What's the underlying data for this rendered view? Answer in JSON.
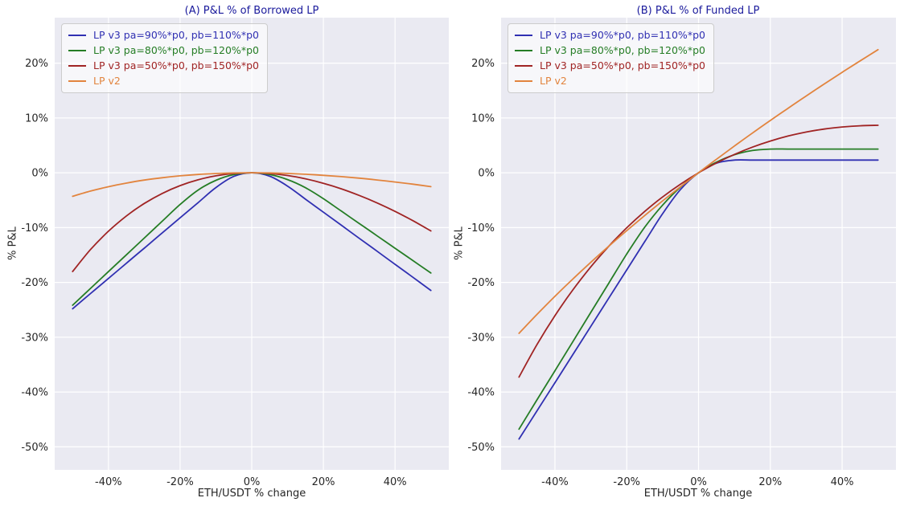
{
  "figure": {
    "background": "#ffffff"
  },
  "styles": {
    "plot_bg": "#eaeaf2",
    "grid_color": "#ffffff",
    "tick_color": "#262626",
    "title_color": "#1a1a9c"
  },
  "chart_data": [
    {
      "type": "line",
      "title": "(A) P&L % of Borrowed LP",
      "xlabel": "ETH/USDT % change",
      "ylabel": "% P&L",
      "xlim": [
        -55,
        55
      ],
      "ylim": [
        -54.2,
        28.3
      ],
      "grid": true,
      "legend_position": "upper left",
      "x_ticks": [
        -40,
        -20,
        0,
        20,
        40
      ],
      "x_tick_labels": [
        "-40%",
        "-20%",
        "0%",
        "20%",
        "40%"
      ],
      "y_ticks": [
        20,
        10,
        0,
        -10,
        -20,
        -30,
        -40,
        -50
      ],
      "y_tick_labels": [
        "20%",
        "10%",
        "0%",
        "-10%",
        "-20%",
        "-30%",
        "-40%",
        "-50%"
      ],
      "x": [
        -50,
        -45,
        -40,
        -35,
        -30,
        -25,
        -20,
        -15,
        -10,
        -5,
        0,
        5,
        10,
        15,
        20,
        25,
        30,
        35,
        40,
        45,
        50
      ],
      "series": [
        {
          "name": "LP v3 pa=90%*p0, pb=110%*p0",
          "color": "#3030b2",
          "values": [
            -24.8,
            -22.04,
            -19.28,
            -16.51,
            -13.75,
            -10.98,
            -8.22,
            -5.46,
            -2.69,
            -0.66,
            0.0,
            -0.62,
            -2.43,
            -4.81,
            -7.19,
            -9.57,
            -11.95,
            -14.32,
            -16.7,
            -19.08,
            -21.46
          ]
        },
        {
          "name": "LP v3 pa=80%*p0, pb=120%*p0",
          "color": "#257d25",
          "values": [
            -24.16,
            -21.1,
            -18.03,
            -14.97,
            -11.91,
            -8.85,
            -5.78,
            -3.16,
            -1.37,
            -0.33,
            0.0,
            -0.32,
            -1.24,
            -2.72,
            -4.73,
            -6.99,
            -9.25,
            -11.51,
            -13.77,
            -16.03,
            -18.29
          ]
        },
        {
          "name": "LP v3 pa=50%*p0, pb=150%*p0",
          "color": "#a02424",
          "values": [
            -18.01,
            -14.01,
            -10.67,
            -7.88,
            -5.6,
            -3.77,
            -2.34,
            -1.28,
            -0.55,
            -0.13,
            0.0,
            -0.13,
            -0.5,
            -1.1,
            -1.91,
            -2.92,
            -4.13,
            -5.5,
            -7.05,
            -8.75,
            -10.6
          ]
        },
        {
          "name": "LP v2",
          "color": "#e2843e",
          "values": [
            -4.29,
            -3.34,
            -2.54,
            -1.88,
            -1.33,
            -0.9,
            -0.56,
            -0.3,
            -0.13,
            -0.03,
            0.0,
            -0.03,
            -0.12,
            -0.26,
            -0.46,
            -0.7,
            -0.98,
            -1.31,
            -1.68,
            -2.08,
            -2.53
          ]
        }
      ]
    },
    {
      "type": "line",
      "title": "(B) P&L % of Funded LP",
      "xlabel": "ETH/USDT % change",
      "ylabel": "% P&L",
      "xlim": [
        -55,
        55
      ],
      "ylim": [
        -54.2,
        28.3
      ],
      "grid": true,
      "legend_position": "upper left",
      "x_ticks": [
        -40,
        -20,
        0,
        20,
        40
      ],
      "x_tick_labels": [
        "-40%",
        "-20%",
        "0%",
        "20%",
        "40%"
      ],
      "y_ticks": [
        20,
        10,
        0,
        -10,
        -20,
        -30,
        -40,
        -50
      ],
      "y_tick_labels": [
        "20%",
        "10%",
        "0%",
        "-10%",
        "-20%",
        "-30%",
        "-40%",
        "-50%"
      ],
      "x": [
        -50,
        -45,
        -40,
        -35,
        -30,
        -25,
        -20,
        -15,
        -10,
        -5,
        0,
        5,
        10,
        15,
        20,
        25,
        30,
        35,
        40,
        45,
        50
      ],
      "series": [
        {
          "name": "LP v3 pa=90%*p0, pb=110%*p0",
          "color": "#3030b2",
          "values": [
            -48.58,
            -43.44,
            -38.3,
            -33.16,
            -28.01,
            -22.87,
            -17.73,
            -12.59,
            -7.45,
            -3.03,
            0.0,
            1.76,
            2.32,
            2.32,
            2.32,
            2.32,
            2.32,
            2.32,
            2.32,
            2.32,
            2.32
          ]
        },
        {
          "name": "LP v3 pa=80%*p0, pb=120%*p0",
          "color": "#257d25",
          "values": [
            -46.77,
            -41.44,
            -36.12,
            -30.8,
            -25.47,
            -20.15,
            -14.83,
            -9.94,
            -5.89,
            -2.59,
            0.0,
            1.94,
            3.29,
            4.06,
            4.32,
            4.32,
            4.32,
            4.32,
            4.32,
            4.32,
            4.32
          ]
        },
        {
          "name": "LP v3 pa=50%*p0, pb=150%*p0",
          "color": "#a02424",
          "values": [
            -37.27,
            -31.35,
            -26.07,
            -21.36,
            -17.16,
            -13.4,
            -10.04,
            -7.06,
            -4.4,
            -2.06,
            0.0,
            1.8,
            3.35,
            4.68,
            5.79,
            6.71,
            7.43,
            7.98,
            8.36,
            8.58,
            8.66
          ]
        },
        {
          "name": "LP v2",
          "color": "#e2843e",
          "values": [
            -29.29,
            -25.84,
            -22.54,
            -19.38,
            -16.33,
            -13.4,
            -10.56,
            -7.81,
            -5.13,
            -2.53,
            0.0,
            2.47,
            4.88,
            7.24,
            9.55,
            11.8,
            14.02,
            16.19,
            18.32,
            20.42,
            22.47
          ]
        }
      ]
    }
  ]
}
